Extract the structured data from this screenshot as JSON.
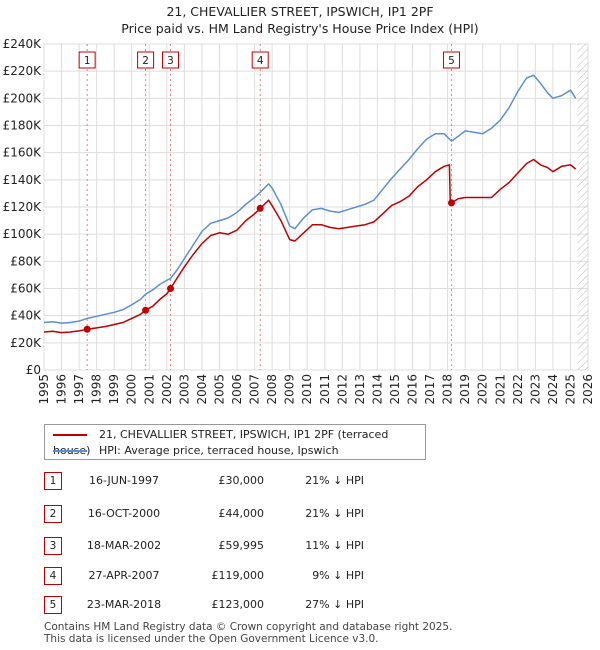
{
  "chart_data": {
    "type": "line",
    "title": "21, CHEVALLIER STREET, IPSWICH, IP1 2PF",
    "subtitle": "Price paid vs. HM Land Registry's House Price Index (HPI)",
    "xlim": [
      1995,
      2026
    ],
    "ylim": [
      0,
      240000
    ],
    "x_ticks": [
      "1995",
      "1996",
      "1997",
      "1998",
      "1999",
      "2000",
      "2001",
      "2002",
      "2003",
      "2004",
      "2005",
      "2006",
      "2007",
      "2008",
      "2009",
      "2010",
      "2011",
      "2012",
      "2013",
      "2014",
      "2015",
      "2016",
      "2017",
      "2018",
      "2019",
      "2020",
      "2021",
      "2022",
      "2023",
      "2024",
      "2025",
      "2026"
    ],
    "y_ticks": [
      {
        "value": 0,
        "label": "£0"
      },
      {
        "value": 20000,
        "label": "£20K"
      },
      {
        "value": 40000,
        "label": "£40K"
      },
      {
        "value": 60000,
        "label": "£60K"
      },
      {
        "value": 80000,
        "label": "£80K"
      },
      {
        "value": 100000,
        "label": "£100K"
      },
      {
        "value": 120000,
        "label": "£120K"
      },
      {
        "value": 140000,
        "label": "£140K"
      },
      {
        "value": 160000,
        "label": "£160K"
      },
      {
        "value": 180000,
        "label": "£180K"
      },
      {
        "value": 200000,
        "label": "£200K"
      },
      {
        "value": 220000,
        "label": "£220K"
      },
      {
        "value": 240000,
        "label": "£240K"
      }
    ],
    "grid": true,
    "future_hatch_from": 2025.4,
    "series": [
      {
        "name": "21, CHEVALLIER STREET, IPSWICH, IP1 2PF (terraced house)",
        "color": "#c00000",
        "points": [
          [
            1995.0,
            28000
          ],
          [
            1995.5,
            28500
          ],
          [
            1996.0,
            27500
          ],
          [
            1996.5,
            28000
          ],
          [
            1997.0,
            28800
          ],
          [
            1997.46,
            30000
          ],
          [
            1998.0,
            31000
          ],
          [
            1998.5,
            32000
          ],
          [
            1999.0,
            33500
          ],
          [
            1999.5,
            35000
          ],
          [
            2000.0,
            38000
          ],
          [
            2000.5,
            41000
          ],
          [
            2000.79,
            44000
          ],
          [
            2001.2,
            47000
          ],
          [
            2001.6,
            52000
          ],
          [
            2002.0,
            56000
          ],
          [
            2002.21,
            59995
          ],
          [
            2002.6,
            68000
          ],
          [
            2003.0,
            76000
          ],
          [
            2003.5,
            85000
          ],
          [
            2004.0,
            93000
          ],
          [
            2004.5,
            99000
          ],
          [
            2005.0,
            101000
          ],
          [
            2005.5,
            100000
          ],
          [
            2006.0,
            103000
          ],
          [
            2006.5,
            110000
          ],
          [
            2007.0,
            115000
          ],
          [
            2007.32,
            119000
          ],
          [
            2007.8,
            125000
          ],
          [
            2008.0,
            121000
          ],
          [
            2008.5,
            110000
          ],
          [
            2009.0,
            96000
          ],
          [
            2009.3,
            95000
          ],
          [
            2009.8,
            101000
          ],
          [
            2010.3,
            107000
          ],
          [
            2010.8,
            107000
          ],
          [
            2011.3,
            105000
          ],
          [
            2011.8,
            104000
          ],
          [
            2012.3,
            105000
          ],
          [
            2012.8,
            106000
          ],
          [
            2013.3,
            107000
          ],
          [
            2013.8,
            109000
          ],
          [
            2014.3,
            115000
          ],
          [
            2014.8,
            121000
          ],
          [
            2015.3,
            124000
          ],
          [
            2015.8,
            128000
          ],
          [
            2016.3,
            135000
          ],
          [
            2016.8,
            140000
          ],
          [
            2017.3,
            146000
          ],
          [
            2017.8,
            150000
          ],
          [
            2018.1,
            151000
          ],
          [
            2018.15,
            125000
          ],
          [
            2018.22,
            123000
          ],
          [
            2018.6,
            126000
          ],
          [
            2019.0,
            127000
          ],
          [
            2019.5,
            127000
          ],
          [
            2020.0,
            127000
          ],
          [
            2020.5,
            127000
          ],
          [
            2021.0,
            133000
          ],
          [
            2021.5,
            138000
          ],
          [
            2022.0,
            145000
          ],
          [
            2022.5,
            152000
          ],
          [
            2022.9,
            155000
          ],
          [
            2023.3,
            151000
          ],
          [
            2023.7,
            149000
          ],
          [
            2024.0,
            146000
          ],
          [
            2024.5,
            150000
          ],
          [
            2025.0,
            151000
          ],
          [
            2025.3,
            148000
          ]
        ]
      },
      {
        "name": "HPI: Average price, terraced house, Ipswich",
        "color": "#5b8fd2",
        "points": [
          [
            1995.0,
            35000
          ],
          [
            1995.5,
            35500
          ],
          [
            1996.0,
            34500
          ],
          [
            1996.5,
            35000
          ],
          [
            1997.0,
            36000
          ],
          [
            1997.46,
            38000
          ],
          [
            1998.0,
            39500
          ],
          [
            1998.5,
            41000
          ],
          [
            1999.0,
            42500
          ],
          [
            1999.5,
            44500
          ],
          [
            2000.0,
            48000
          ],
          [
            2000.5,
            52000
          ],
          [
            2000.79,
            55800
          ],
          [
            2001.2,
            59000
          ],
          [
            2001.6,
            63000
          ],
          [
            2002.0,
            66000
          ],
          [
            2002.21,
            67400
          ],
          [
            2002.6,
            74000
          ],
          [
            2003.0,
            82000
          ],
          [
            2003.5,
            92000
          ],
          [
            2004.0,
            102000
          ],
          [
            2004.5,
            108000
          ],
          [
            2005.0,
            110000
          ],
          [
            2005.5,
            112000
          ],
          [
            2006.0,
            116000
          ],
          [
            2006.5,
            122000
          ],
          [
            2007.0,
            127000
          ],
          [
            2007.32,
            130800
          ],
          [
            2007.8,
            137000
          ],
          [
            2008.0,
            134000
          ],
          [
            2008.5,
            122000
          ],
          [
            2009.0,
            106000
          ],
          [
            2009.3,
            104000
          ],
          [
            2009.8,
            112000
          ],
          [
            2010.3,
            118000
          ],
          [
            2010.8,
            119000
          ],
          [
            2011.3,
            117000
          ],
          [
            2011.8,
            116000
          ],
          [
            2012.3,
            118000
          ],
          [
            2012.8,
            120000
          ],
          [
            2013.3,
            122000
          ],
          [
            2013.8,
            125000
          ],
          [
            2014.3,
            133000
          ],
          [
            2014.8,
            141000
          ],
          [
            2015.3,
            148000
          ],
          [
            2015.8,
            155000
          ],
          [
            2016.3,
            163000
          ],
          [
            2016.8,
            170000
          ],
          [
            2017.3,
            174000
          ],
          [
            2017.8,
            174000
          ],
          [
            2018.22,
            168500
          ],
          [
            2018.6,
            172000
          ],
          [
            2019.0,
            176000
          ],
          [
            2019.5,
            175000
          ],
          [
            2020.0,
            174000
          ],
          [
            2020.5,
            178000
          ],
          [
            2021.0,
            184000
          ],
          [
            2021.5,
            193000
          ],
          [
            2022.0,
            205000
          ],
          [
            2022.5,
            215000
          ],
          [
            2022.9,
            217000
          ],
          [
            2023.3,
            211000
          ],
          [
            2023.7,
            204000
          ],
          [
            2024.0,
            200000
          ],
          [
            2024.5,
            202000
          ],
          [
            2025.0,
            206000
          ],
          [
            2025.3,
            200000
          ]
        ]
      }
    ],
    "sales": [
      {
        "num": "1",
        "year": 1997.46,
        "value": 30000
      },
      {
        "num": "2",
        "year": 2000.79,
        "value": 44000
      },
      {
        "num": "3",
        "year": 2002.21,
        "value": 59995
      },
      {
        "num": "4",
        "year": 2007.32,
        "value": 119000
      },
      {
        "num": "5",
        "year": 2018.22,
        "value": 123000
      }
    ]
  },
  "legend": {
    "property_label": "21, CHEVALLIER STREET, IPSWICH, IP1 2PF (terraced house)",
    "hpi_label": "HPI: Average price, terraced house, Ipswich"
  },
  "table": [
    {
      "num": "1",
      "date": "16-JUN-1997",
      "price": "£30,000",
      "hpi": "21% ↓ HPI"
    },
    {
      "num": "2",
      "date": "16-OCT-2000",
      "price": "£44,000",
      "hpi": "21% ↓ HPI"
    },
    {
      "num": "3",
      "date": "18-MAR-2002",
      "price": "£59,995",
      "hpi": "11% ↓ HPI"
    },
    {
      "num": "4",
      "date": "27-APR-2007",
      "price": "£119,000",
      "hpi": "9% ↓ HPI"
    },
    {
      "num": "5",
      "date": "23-MAR-2018",
      "price": "£123,000",
      "hpi": "27% ↓ HPI"
    }
  ],
  "footer": {
    "line1": "Contains HM Land Registry data © Crown copyright and database right 2025.",
    "line2": "This data is licensed under the Open Government Licence v3.0."
  }
}
